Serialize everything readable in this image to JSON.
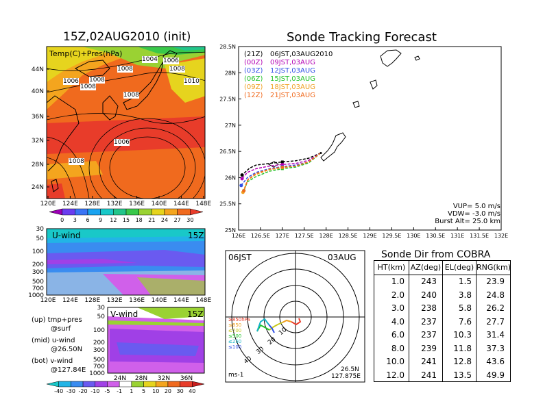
{
  "map_panel": {
    "title": "15Z,02AUG2010 (init)",
    "overlay_label": "Temp(C)+Pres(hPa)",
    "lat_labels": [
      "44N",
      "40N",
      "36N",
      "32N",
      "28N",
      "24N"
    ],
    "lon_labels": [
      "120E",
      "124E",
      "128E",
      "132E",
      "136E",
      "140E",
      "144E",
      "148E"
    ],
    "isobar_labels": [
      "1006",
      "1008",
      "1008",
      "1004",
      "1006",
      "1008",
      "1008",
      "1010",
      "1008",
      "1006",
      "1008"
    ],
    "colorbar_labels": [
      "0",
      "3",
      "6",
      "9",
      "12",
      "15",
      "18",
      "21",
      "24",
      "27",
      "30"
    ],
    "colorbar_colors": [
      "#9b00b4",
      "#6a3cf0",
      "#3a74f5",
      "#1aa3f0",
      "#19c8c8",
      "#22c58a",
      "#39c84a",
      "#9ad233",
      "#e6d41e",
      "#f4a51e",
      "#f06a1e",
      "#e83c2a"
    ]
  },
  "u_wind_panel": {
    "label": "U-wind",
    "time": "15Z",
    "y_labels": [
      "30",
      "50",
      "100",
      "200",
      "300",
      "500",
      "700",
      "1000"
    ],
    "x_labels": [
      "120E",
      "124E",
      "128E",
      "132E",
      "136E",
      "140E",
      "144E",
      "148E"
    ]
  },
  "v_wind_panel": {
    "label": "V-wind",
    "time": "15Z",
    "y_labels": [
      "30",
      "50",
      "100",
      "200",
      "300",
      "500",
      "700",
      "1000"
    ],
    "x_labels": [
      "24N",
      "28N",
      "32N",
      "36N"
    ],
    "colorbar_labels": [
      "-40",
      "-30",
      "-20",
      "-10",
      "-5",
      "-1",
      "1",
      "5",
      "10",
      "20",
      "30",
      "40"
    ],
    "colorbar_colors": [
      "#19c8c8",
      "#22b4e6",
      "#3a8cf0",
      "#6a5af0",
      "#a040e6",
      "#d060ea",
      "#ffffff",
      "#9ad233",
      "#e6d41e",
      "#f4a51e",
      "#f06a1e",
      "#e83c2a",
      "#c81e1e"
    ]
  },
  "legend_notes": [
    {
      "line1": "(up) tmp+pres",
      "line2": "@surf"
    },
    {
      "line1": "(mid) u-wind",
      "line2": "@26.50N"
    },
    {
      "line1": "(bot) v-wind",
      "line2": "@127.84E"
    }
  ],
  "tracking": {
    "title": "Sonde Tracking Forecast",
    "legend": [
      {
        "code": "(21Z)",
        "text": "06JST,03AUG2010",
        "color": "#000000"
      },
      {
        "code": "(00Z)",
        "text": "09JST,03AUG",
        "color": "#b400b4"
      },
      {
        "code": "(03Z)",
        "text": "12JST,03AUG",
        "color": "#3050e6"
      },
      {
        "code": "(06Z)",
        "text": "15JST,03AUG",
        "color": "#22c22a"
      },
      {
        "code": "(09Z)",
        "text": "18JST,03AUG",
        "color": "#f0a020"
      },
      {
        "code": "(12Z)",
        "text": "21JST,03AUG",
        "color": "#f06a1e"
      }
    ],
    "lat_labels": [
      "28.5N",
      "28N",
      "27.5N",
      "27N",
      "26.5N",
      "26N",
      "25.5N",
      "25N"
    ],
    "lon_labels": [
      "126E",
      "126.5E",
      "127E",
      "127.5E",
      "128E",
      "128.5E",
      "129E",
      "129.5E",
      "130E",
      "130.5E",
      "131E",
      "131.5E",
      "132E"
    ],
    "params": [
      {
        "name": "VUP=",
        "value": "5.0 m/s"
      },
      {
        "name": "VDW=",
        "value": "-3.0 m/s"
      },
      {
        "name": "Burst Alt=",
        "value": "25.0 km"
      }
    ]
  },
  "chart_data": {
    "type": "line",
    "title": "Sonde Tracking Forecast",
    "xlabel": "",
    "ylabel": "",
    "xlim": [
      126,
      132
    ],
    "ylim": [
      25,
      28.5
    ],
    "launch_point": {
      "lon": 127.88,
      "lat": 26.47
    },
    "series": [
      {
        "name": "(21Z) 06JST,03AUG2010",
        "color": "#000000",
        "points": [
          [
            127.88,
            26.47
          ],
          [
            127.6,
            26.37
          ],
          [
            127.3,
            26.32
          ],
          [
            127.0,
            26.3
          ],
          [
            126.7,
            26.27
          ],
          [
            126.4,
            26.24
          ],
          [
            126.25,
            26.18
          ],
          [
            126.08,
            26.05
          ]
        ]
      },
      {
        "name": "(00Z) 09JST,03AUG",
        "color": "#b400b4",
        "points": [
          [
            127.88,
            26.47
          ],
          [
            127.6,
            26.33
          ],
          [
            127.3,
            26.27
          ],
          [
            127.0,
            26.25
          ],
          [
            126.7,
            26.22
          ],
          [
            126.4,
            26.17
          ],
          [
            126.2,
            26.1
          ],
          [
            126.08,
            25.98
          ]
        ]
      },
      {
        "name": "(03Z) 12JST,03AUG",
        "color": "#3050e6",
        "points": [
          [
            127.88,
            26.47
          ],
          [
            127.6,
            26.3
          ],
          [
            127.3,
            26.24
          ],
          [
            127.0,
            26.21
          ],
          [
            126.7,
            26.17
          ],
          [
            126.4,
            26.1
          ],
          [
            126.2,
            26.0
          ],
          [
            126.06,
            25.85
          ]
        ]
      },
      {
        "name": "(06Z) 15JST,03AUG",
        "color": "#22c22a",
        "points": [
          [
            127.88,
            26.47
          ],
          [
            127.6,
            26.28
          ],
          [
            127.3,
            26.2
          ],
          [
            127.0,
            26.17
          ],
          [
            126.7,
            26.12
          ],
          [
            126.4,
            26.02
          ],
          [
            126.2,
            25.92
          ],
          [
            126.12,
            25.75
          ]
        ]
      },
      {
        "name": "(09Z) 18JST,03AUG",
        "color": "#f0a020",
        "points": [
          [
            127.88,
            26.47
          ],
          [
            127.6,
            26.3
          ],
          [
            127.3,
            26.22
          ],
          [
            127.0,
            26.19
          ],
          [
            126.7,
            26.15
          ],
          [
            126.4,
            26.06
          ],
          [
            126.2,
            25.95
          ],
          [
            126.1,
            25.72
          ]
        ]
      },
      {
        "name": "(12Z) 21JST,03AUG",
        "color": "#f06a1e",
        "points": [
          [
            127.88,
            26.47
          ],
          [
            127.6,
            26.3
          ],
          [
            127.3,
            26.22
          ],
          [
            127.0,
            26.2
          ],
          [
            126.7,
            26.16
          ],
          [
            126.4,
            26.08
          ],
          [
            126.22,
            25.97
          ],
          [
            126.12,
            25.75
          ]
        ]
      }
    ]
  },
  "polar": {
    "left_label": "06JST",
    "right_label": "03AUG",
    "level_labels": [
      {
        "text": "≥850hPa",
        "color": "#e83c2a"
      },
      {
        "text": "≤850",
        "color": "#f0a020"
      },
      {
        "text": "≤700",
        "color": "#c8c81e"
      },
      {
        "text": "≤500",
        "color": "#22c22a"
      },
      {
        "text": "≤250",
        "color": "#19b4c8"
      },
      {
        "text": "≤100",
        "color": "#3050e6"
      }
    ],
    "unit": "ms-1",
    "ring_labels": [
      "10",
      "20",
      "30",
      "40"
    ],
    "pos_lat": "26.5N",
    "pos_lon": "127.875E"
  },
  "cobra_table": {
    "title": "Sonde Dir from COBRA",
    "headers": [
      "HT(km)",
      "AZ(deg)",
      "EL(deg)",
      "RNG(km)"
    ],
    "rows": [
      [
        "1.0",
        "243",
        "1.5",
        "23.9"
      ],
      [
        "2.0",
        "240",
        "3.8",
        "24.8"
      ],
      [
        "3.0",
        "238",
        "5.8",
        "26.2"
      ],
      [
        "4.0",
        "237",
        "7.6",
        "27.7"
      ],
      [
        "6.0",
        "237",
        "10.3",
        "31.4"
      ],
      [
        "8.0",
        "239",
        "11.8",
        "37.3"
      ],
      [
        "10.0",
        "241",
        "12.8",
        "43.6"
      ],
      [
        "12.0",
        "241",
        "13.5",
        "49.9"
      ]
    ]
  }
}
